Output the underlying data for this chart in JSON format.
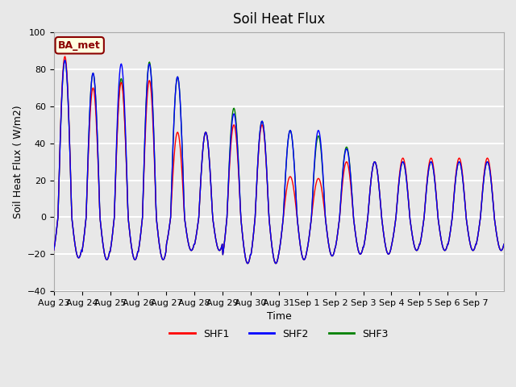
{
  "title": "Soil Heat Flux",
  "xlabel": "Time",
  "ylabel": "Soil Heat Flux ( W/m2)",
  "ylim": [
    -40,
    100
  ],
  "yticks": [
    -40,
    -20,
    0,
    20,
    40,
    60,
    80,
    100
  ],
  "background_color": "#e8e8e8",
  "plot_bg_color": "#e8e8e8",
  "grid_color": "white",
  "shf1_color": "red",
  "shf2_color": "blue",
  "shf3_color": "green",
  "annotation_text": "BA_met",
  "annotation_bg": "lightyellow",
  "annotation_border": "darkred",
  "days": [
    "Aug 23",
    "Aug 24",
    "Aug 25",
    "Aug 26",
    "Aug 27",
    "Aug 28",
    "Aug 29",
    "Aug 30",
    "Aug 31",
    "Sep 1",
    "Sep 2",
    "Sep 3",
    "Sep 4",
    "Sep 5",
    "Sep 6",
    "Sep 7"
  ],
  "shf1_peaks": [
    87,
    70,
    73,
    74,
    46,
    46,
    50,
    50,
    22,
    21,
    30,
    30,
    32,
    32,
    32,
    32
  ],
  "shf2_peaks": [
    85,
    78,
    83,
    83,
    76,
    46,
    56,
    52,
    47,
    47,
    37,
    30,
    30,
    30,
    30,
    30
  ],
  "shf3_peaks": [
    85,
    78,
    75,
    84,
    76,
    46,
    59,
    52,
    47,
    44,
    38,
    30,
    30,
    30,
    30,
    30
  ],
  "troughs": [
    -22,
    -23,
    -23,
    -23,
    -18,
    -18,
    -25,
    -25,
    -23,
    -21,
    -20,
    -20,
    -18,
    -18,
    -18,
    -18
  ]
}
